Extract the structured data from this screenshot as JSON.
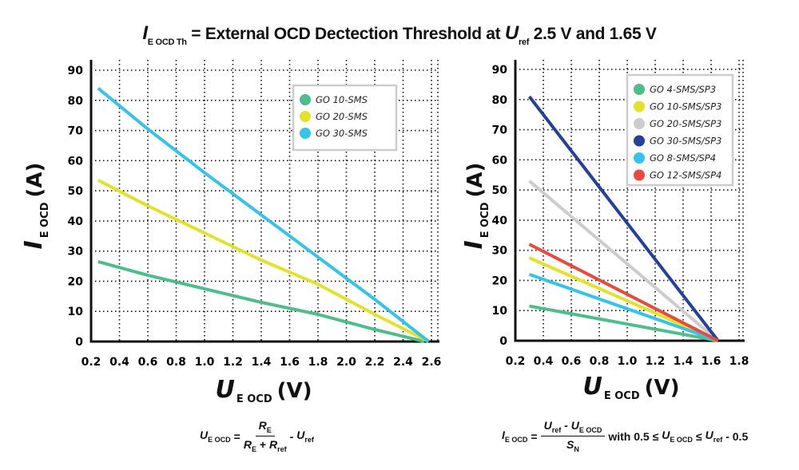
{
  "title": {
    "i_symbol": "I",
    "i_sub": "E OCD Th",
    "text": " = External OCD Dectection Threshold at ",
    "u_symbol": "U",
    "u_sub": "ref",
    "tail": " 2.5 V and 1.65 V"
  },
  "chart_data": [
    {
      "type": "line",
      "xlabel": {
        "symbol": "U",
        "sub": "E OCD",
        "unit": "(V)"
      },
      "ylabel": {
        "symbol": "I",
        "sub": "E OCD",
        "unit": "(A)"
      },
      "xlim": [
        0.2,
        2.6
      ],
      "ylim": [
        0,
        90
      ],
      "xticks": [
        "0.2",
        "0.4",
        "0.6",
        "0.8",
        "1.0",
        "1.2",
        "1.4",
        "1.6",
        "1.8",
        "2.0",
        "2.2",
        "2.4",
        "2.6"
      ],
      "yticks": [
        "0",
        "10",
        "20",
        "30",
        "40",
        "50",
        "60",
        "70",
        "80",
        "90"
      ],
      "grid": true,
      "legend_position": "top-right",
      "series": [
        {
          "name": "GO 10-SMS",
          "color": "#4dbd8b",
          "x": [
            0.25,
            0.6,
            1.0,
            1.4,
            1.8,
            2.2,
            2.55
          ],
          "y": [
            26.5,
            22,
            17.5,
            13,
            9,
            4,
            0
          ]
        },
        {
          "name": "GO 20-SMS",
          "color": "#e2e22a",
          "x": [
            0.25,
            0.6,
            1.0,
            1.4,
            1.8,
            2.2,
            2.58
          ],
          "y": [
            53.5,
            45,
            36,
            27,
            19,
            9,
            0
          ]
        },
        {
          "name": "GO 30-SMS",
          "color": "#35c3ea",
          "x": [
            0.25,
            0.6,
            1.0,
            1.4,
            1.8,
            2.2,
            2.58
          ],
          "y": [
            84,
            70.5,
            56,
            42,
            28,
            14,
            0
          ]
        }
      ],
      "formula": {
        "lhs": "U",
        "lhs_sub": "E OCD",
        "eq": "=",
        "num": "R",
        "num_sub": "E",
        "den1": "R",
        "den1_sub": "E",
        "plus": "+",
        "den2": "R",
        "den2_sub": "ref",
        "minus": "-",
        "rhs": "U",
        "rhs_sub": "ref"
      }
    },
    {
      "type": "line",
      "xlabel": {
        "symbol": "U",
        "sub": "E OCD",
        "unit": "(V)"
      },
      "ylabel": {
        "symbol": "I",
        "sub": "E OCD",
        "unit": "(A)"
      },
      "xlim": [
        0.2,
        1.8
      ],
      "ylim": [
        0,
        90
      ],
      "xticks": [
        "0.2",
        "0.4",
        "0.6",
        "0.8",
        "1.0",
        "1.2",
        "1.4",
        "1.6",
        "1.8"
      ],
      "yticks": [
        "0",
        "10",
        "20",
        "30",
        "40",
        "50",
        "60",
        "70",
        "80",
        "90"
      ],
      "grid": true,
      "legend_position": "top-right",
      "series": [
        {
          "name": "GO 4-SMS/SP3",
          "color": "#4dbd8b",
          "x": [
            0.3,
            1.65
          ],
          "y": [
            11.5,
            0
          ]
        },
        {
          "name": "GO 10-SMS/SP3",
          "color": "#e2e22a",
          "x": [
            0.3,
            1.65
          ],
          "y": [
            27.5,
            0
          ]
        },
        {
          "name": "GO 20-SMS/SP3",
          "color": "#cccccc",
          "x": [
            0.3,
            1.65
          ],
          "y": [
            53,
            0
          ]
        },
        {
          "name": "GO 30-SMS/SP3",
          "color": "#23409a",
          "x": [
            0.3,
            1.65
          ],
          "y": [
            81,
            0
          ]
        },
        {
          "name": "GO 8-SMS/SP4",
          "color": "#35c3ea",
          "x": [
            0.3,
            1.65
          ],
          "y": [
            22,
            0
          ]
        },
        {
          "name": "GO 12-SMS/SP4",
          "color": "#e84a3c",
          "x": [
            0.3,
            1.65
          ],
          "y": [
            32,
            0
          ]
        }
      ],
      "formula": {
        "lhs": "I",
        "lhs_sub": "E OCD",
        "eq": "=",
        "num1": "U",
        "num1_sub": "ref",
        "numminus": "-",
        "num2": "U",
        "num2_sub": "E OCD",
        "den": "S",
        "den_sub": "N",
        "with": "with 0.5 ≤",
        "mid": "U",
        "mid_sub": "E OCD",
        "le": "≤",
        "rhs": "U",
        "rhs_sub": "ref",
        "tail": "- 0.5"
      }
    }
  ]
}
